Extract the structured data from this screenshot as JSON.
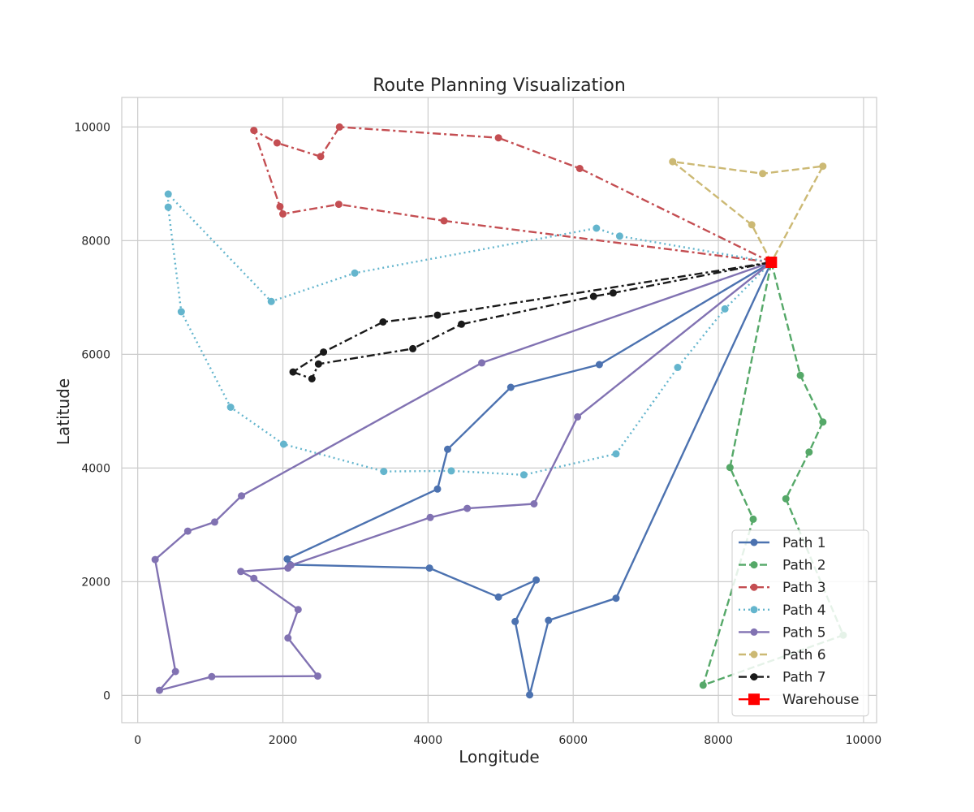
{
  "chart_data": {
    "type": "line",
    "title": "Route Planning Visualization",
    "xlabel": "Longitude",
    "ylabel": "Latitude",
    "xlim": [
      -220,
      10180
    ],
    "ylim": [
      -480,
      10520
    ],
    "xticks": [
      0,
      2000,
      4000,
      6000,
      8000,
      10000
    ],
    "yticks": [
      0,
      2000,
      4000,
      6000,
      8000,
      10000
    ],
    "grid": true,
    "legend_position": "lower-right",
    "depot": {
      "name": "Warehouse",
      "x": 8730,
      "y": 7620,
      "color": "#ff0000",
      "marker": "square"
    },
    "series": [
      {
        "name": "Path 1",
        "color": "#4c72b0",
        "dash": "solid",
        "points": [
          [
            8730,
            7620
          ],
          [
            6360,
            5820
          ],
          [
            5140,
            5420
          ],
          [
            4270,
            4330
          ],
          [
            4130,
            3630
          ],
          [
            2060,
            2400
          ],
          [
            2100,
            2300
          ],
          [
            4020,
            2240
          ],
          [
            4970,
            1730
          ],
          [
            5490,
            2030
          ],
          [
            5200,
            1300
          ],
          [
            5400,
            10
          ],
          [
            5660,
            1320
          ],
          [
            6590,
            1710
          ],
          [
            8730,
            7620
          ]
        ]
      },
      {
        "name": "Path 2",
        "color": "#55a868",
        "dash": "dashed",
        "points": [
          [
            8730,
            7620
          ],
          [
            9130,
            5630
          ],
          [
            9440,
            4810
          ],
          [
            9250,
            4280
          ],
          [
            8930,
            3460
          ],
          [
            9720,
            1060
          ],
          [
            7790,
            180
          ],
          [
            8480,
            3100
          ],
          [
            8160,
            4010
          ],
          [
            8730,
            7620
          ]
        ]
      },
      {
        "name": "Path 3",
        "color": "#c44e52",
        "dash": "dashdot",
        "points": [
          [
            8730,
            7620
          ],
          [
            6090,
            9270
          ],
          [
            4970,
            9810
          ],
          [
            2780,
            10000
          ],
          [
            2520,
            9480
          ],
          [
            1920,
            9720
          ],
          [
            1600,
            9940
          ],
          [
            1960,
            8600
          ],
          [
            2000,
            8470
          ],
          [
            2770,
            8640
          ],
          [
            4220,
            8350
          ],
          [
            8730,
            7620
          ]
        ]
      },
      {
        "name": "Path 4",
        "color": "#64b5cd",
        "dash": "dotted",
        "points": [
          [
            8730,
            7620
          ],
          [
            6640,
            8080
          ],
          [
            6320,
            8220
          ],
          [
            2990,
            7430
          ],
          [
            1840,
            6930
          ],
          [
            420,
            8820
          ],
          [
            420,
            8590
          ],
          [
            600,
            6750
          ],
          [
            1280,
            5070
          ],
          [
            2010,
            4420
          ],
          [
            3390,
            3940
          ],
          [
            4320,
            3950
          ],
          [
            5320,
            3880
          ],
          [
            6590,
            4250
          ],
          [
            7440,
            5770
          ],
          [
            8090,
            6800
          ],
          [
            8730,
            7620
          ]
        ]
      },
      {
        "name": "Path 5",
        "color": "#8172b2",
        "dash": "solid",
        "points": [
          [
            8730,
            7620
          ],
          [
            6060,
            4900
          ],
          [
            5460,
            3370
          ],
          [
            4540,
            3290
          ],
          [
            4030,
            3130
          ],
          [
            2110,
            2290
          ],
          [
            2070,
            2240
          ],
          [
            1420,
            2180
          ],
          [
            1600,
            2060
          ],
          [
            2210,
            1510
          ],
          [
            2070,
            1010
          ],
          [
            2480,
            340
          ],
          [
            1020,
            330
          ],
          [
            300,
            90
          ],
          [
            520,
            420
          ],
          [
            240,
            2390
          ],
          [
            690,
            2890
          ],
          [
            1060,
            3050
          ],
          [
            1430,
            3510
          ],
          [
            4740,
            5850
          ],
          [
            8730,
            7620
          ]
        ]
      },
      {
        "name": "Path 6",
        "color": "#ccb974",
        "dash": "dashed",
        "points": [
          [
            8730,
            7620
          ],
          [
            8460,
            8280
          ],
          [
            7370,
            9390
          ],
          [
            8610,
            9180
          ],
          [
            9440,
            9310
          ],
          [
            8730,
            7620
          ]
        ]
      },
      {
        "name": "Path 7",
        "color": "#1a1a1a",
        "dash": "dashdot",
        "points": [
          [
            8730,
            7620
          ],
          [
            6550,
            7080
          ],
          [
            6280,
            7020
          ],
          [
            4460,
            6530
          ],
          [
            3790,
            6100
          ],
          [
            2490,
            5830
          ],
          [
            2400,
            5570
          ],
          [
            2140,
            5690
          ],
          [
            2560,
            6040
          ],
          [
            3380,
            6570
          ],
          [
            4130,
            6690
          ],
          [
            8730,
            7620
          ]
        ]
      }
    ]
  }
}
